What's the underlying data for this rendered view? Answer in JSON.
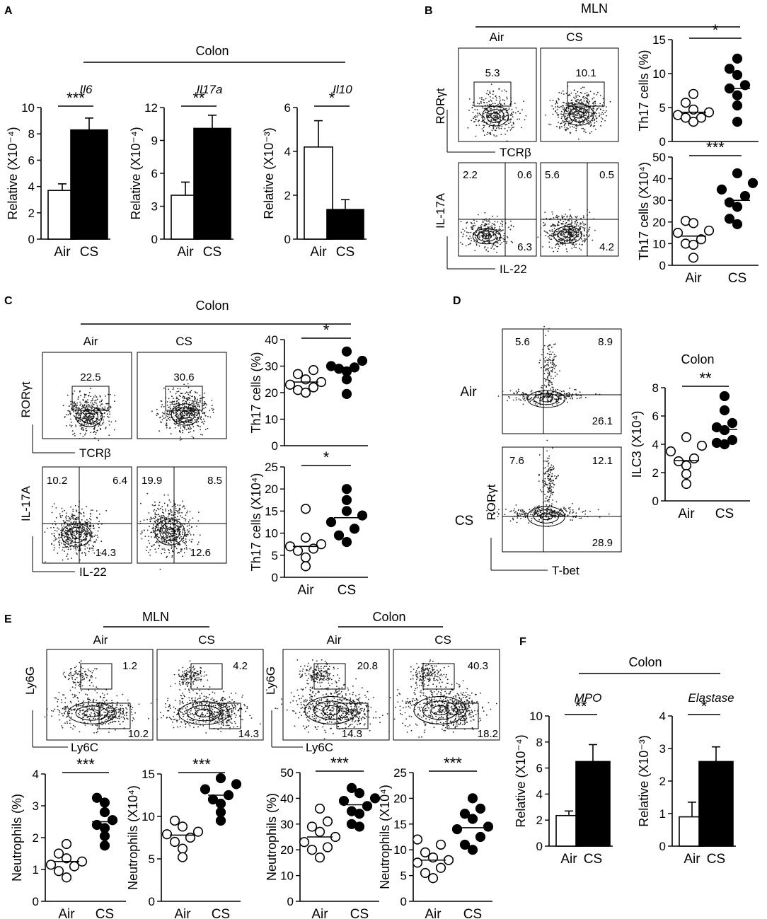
{
  "panel_labels": [
    "A",
    "B",
    "C",
    "D",
    "E",
    "F"
  ],
  "groups": [
    "Air",
    "CS"
  ],
  "chart_data": [
    {
      "id": "A1",
      "panel": "A",
      "type": "bar",
      "header": "Colon",
      "gene": "Il6",
      "ylabel": "Relative (X10⁻⁴)",
      "ylim": [
        0,
        10
      ],
      "yticks": [
        "0",
        "2",
        "4",
        "6",
        "8",
        "10"
      ],
      "categories": [
        "Air",
        "CS"
      ],
      "values": [
        3.7,
        8.3
      ],
      "errors": [
        0.5,
        0.9
      ],
      "sig": "***"
    },
    {
      "id": "A2",
      "panel": "A",
      "type": "bar",
      "gene": "Il17a",
      "ylabel": "Relative (X10⁻⁴)",
      "ylim": [
        0,
        12
      ],
      "yticks": [
        "0",
        "3",
        "6",
        "9",
        "12"
      ],
      "categories": [
        "Air",
        "CS"
      ],
      "values": [
        4.0,
        10.1
      ],
      "errors": [
        1.2,
        1.2
      ],
      "sig": "**"
    },
    {
      "id": "A3",
      "panel": "A",
      "type": "bar",
      "gene": "Il10",
      "ylabel": "Relative (X10⁻³)",
      "ylim": [
        0,
        6
      ],
      "yticks": [
        "0",
        "2",
        "4",
        "6"
      ],
      "categories": [
        "Air",
        "CS"
      ],
      "values": [
        4.2,
        1.35
      ],
      "errors": [
        1.2,
        0.45
      ],
      "sig": "*"
    },
    {
      "id": "B1",
      "panel": "B",
      "type": "scatter",
      "header": "MLN",
      "ylabel": "Th17 cells (%)",
      "ylim": [
        0,
        15
      ],
      "yticks": [
        "0",
        "5",
        "10",
        "15"
      ],
      "show_xticks": false,
      "categories": [
        "Air",
        "CS"
      ],
      "points": [
        [
          5.7,
          7.0,
          4.7,
          4.3,
          3.9,
          3.5,
          3.5,
          2.9
        ],
        [
          12.2,
          10.7,
          9.8,
          8.3,
          7.8,
          6.8,
          5.3,
          2.9
        ]
      ],
      "means": [
        4.3,
        7.8
      ],
      "sig": "*"
    },
    {
      "id": "B2",
      "panel": "B",
      "type": "scatter",
      "ylabel": "Th17 cells (X10⁴)",
      "ylim": [
        0,
        50
      ],
      "yticks": [
        "0",
        "10",
        "20",
        "30",
        "40",
        "50"
      ],
      "categories": [
        "Air",
        "CS"
      ],
      "points": [
        [
          20.5,
          19.5,
          16.0,
          15.0,
          12.0,
          10.0,
          9.5,
          3.5
        ],
        [
          42.5,
          38.0,
          35.0,
          32.0,
          29.0,
          27.0,
          21.5,
          19.0
        ]
      ],
      "means": [
        13.5,
        30.0
      ],
      "sig": "***"
    },
    {
      "id": "C1",
      "panel": "C",
      "type": "scatter",
      "header": "Colon",
      "ylabel": "Th17 cells (%)",
      "ylim": [
        0,
        40
      ],
      "yticks": [
        "0",
        "10",
        "20",
        "30",
        "40"
      ],
      "show_xticks": false,
      "categories": [
        "Air",
        "CS"
      ],
      "points": [
        [
          28.5,
          27.0,
          25.0,
          24.0,
          23.0,
          22.0,
          21.0,
          20.0
        ],
        [
          35.5,
          32.0,
          30.0,
          29.5,
          29.0,
          28.0,
          25.0,
          19.5
        ]
      ],
      "means": [
        24.0,
        29.5
      ],
      "sig": "*"
    },
    {
      "id": "C2",
      "panel": "C",
      "type": "scatter",
      "ylabel": "Th17 cells (X10⁴)",
      "ylim": [
        0,
        25
      ],
      "yticks": [
        "0",
        "5",
        "10",
        "15",
        "20",
        "25"
      ],
      "categories": [
        "Air",
        "CS"
      ],
      "points": [
        [
          15.5,
          9.0,
          7.5,
          7.0,
          6.5,
          6.0,
          4.5,
          2.5
        ],
        [
          20.0,
          17.5,
          15.0,
          14.0,
          12.5,
          11.0,
          9.5,
          8.0
        ]
      ],
      "means": [
        7.0,
        13.5
      ],
      "sig": "*"
    },
    {
      "id": "D1",
      "panel": "D",
      "type": "scatter",
      "header": "Colon",
      "ylabel": "ILC3 (X10⁴)",
      "ylim": [
        0,
        8
      ],
      "yticks": [
        "0",
        "2",
        "4",
        "6",
        "8"
      ],
      "categories": [
        "Air",
        "CS"
      ],
      "points": [
        [
          4.5,
          3.9,
          3.5,
          3.0,
          2.8,
          2.5,
          1.9,
          1.2
        ],
        [
          7.4,
          6.4,
          5.5,
          5.2,
          5.0,
          4.3,
          4.1,
          4.0
        ]
      ],
      "means": [
        2.85,
        5.05
      ],
      "sig": "**"
    },
    {
      "id": "E1",
      "panel": "E",
      "type": "scatter",
      "ylabel": "Neutrophils (%)",
      "ylim": [
        0,
        4
      ],
      "yticks": [
        "0",
        "1",
        "2",
        "3",
        "4"
      ],
      "categories": [
        "Air",
        "CS"
      ],
      "points": [
        [
          1.8,
          1.5,
          1.35,
          1.25,
          1.15,
          1.1,
          0.95,
          0.75
        ],
        [
          3.25,
          3.1,
          2.8,
          2.55,
          2.4,
          2.3,
          2.05,
          1.75
        ]
      ],
      "means": [
        1.25,
        2.5
      ],
      "sig": "***"
    },
    {
      "id": "E2",
      "panel": "E",
      "type": "scatter",
      "ylabel": "Neutrophils (X10⁴)",
      "ylim": [
        0,
        15
      ],
      "yticks": [
        "0",
        "5",
        "10",
        "15"
      ],
      "categories": [
        "Air",
        "CS"
      ],
      "points": [
        [
          9.5,
          8.8,
          8.2,
          7.9,
          7.5,
          7.0,
          6.2,
          5.2
        ],
        [
          14.5,
          13.8,
          13.2,
          12.5,
          12.0,
          11.5,
          10.5,
          9.5
        ]
      ],
      "means": [
        7.8,
        12.5
      ],
      "sig": "***"
    },
    {
      "id": "E3",
      "panel": "E",
      "type": "scatter",
      "header": "Colon",
      "ylabel": "Neutrophils (%)",
      "ylim": [
        0,
        50
      ],
      "yticks": [
        "0",
        "10",
        "20",
        "30",
        "40",
        "50"
      ],
      "categories": [
        "Air",
        "CS"
      ],
      "points": [
        [
          36,
          31,
          29,
          27,
          25,
          23,
          21,
          20,
          17
        ],
        [
          44,
          42,
          40,
          39,
          37,
          35,
          34,
          30,
          29
        ]
      ],
      "means": [
        25,
        37.5
      ],
      "sig": "***"
    },
    {
      "id": "E4",
      "panel": "E",
      "type": "scatter",
      "ylabel": "Neutrophils (X10⁴)",
      "ylim": [
        0,
        25
      ],
      "yticks": [
        "0",
        "5",
        "10",
        "15",
        "20",
        "25"
      ],
      "categories": [
        "Air",
        "CS"
      ],
      "points": [
        [
          12,
          11,
          9.5,
          8.5,
          8,
          7.5,
          6.5,
          5.5,
          4.5
        ],
        [
          20,
          18,
          17,
          16,
          14.5,
          14,
          12.5,
          11,
          10
        ]
      ],
      "means": [
        8,
        14.3
      ],
      "sig": "***"
    },
    {
      "id": "F1",
      "panel": "F",
      "type": "bar",
      "header": "Colon",
      "gene": "MPO",
      "ylabel": "Relative (X10⁻⁴)",
      "ylim": [
        0,
        10
      ],
      "yticks": [
        "0",
        "2",
        "4",
        "6",
        "8",
        "10"
      ],
      "categories": [
        "Air",
        "CS"
      ],
      "values": [
        2.35,
        6.5
      ],
      "errors": [
        0.35,
        1.3
      ],
      "sig": "**"
    },
    {
      "id": "F2",
      "panel": "F",
      "type": "bar",
      "gene": "Elastase",
      "ylabel": "Relative (X10⁻³)",
      "ylim": [
        0,
        4
      ],
      "yticks": [
        "0",
        "1",
        "2",
        "3",
        "4"
      ],
      "categories": [
        "Air",
        "CS"
      ],
      "values": [
        0.9,
        2.6
      ],
      "errors": [
        0.45,
        0.45
      ],
      "sig": "*"
    }
  ],
  "flow_plots": {
    "B_top": {
      "y_axis": "RORγt",
      "x_axis": "TCRβ",
      "air_value": "5.3",
      "cs_value": "10.1"
    },
    "B_bottom": {
      "y_axis": "IL-17A",
      "x_axis": "IL-22",
      "air_quadrants": [
        "2.2",
        "0.6",
        "6.3"
      ],
      "cs_quadrants": [
        "5.6",
        "0.5",
        "4.2"
      ]
    },
    "C_top": {
      "y_axis": "RORγt",
      "x_axis": "TCRβ",
      "air_value": "22.5",
      "cs_value": "30.6"
    },
    "C_bottom": {
      "y_axis": "IL-17A",
      "x_axis": "IL-22",
      "air_quadrants": [
        "10.2",
        "6.4",
        "14.3"
      ],
      "cs_quadrants": [
        "19.9",
        "8.5",
        "12.6"
      ]
    },
    "D": {
      "y_axis": "RORγt",
      "x_axis": "T-bet",
      "air_quadrants": [
        "5.6",
        "8.9",
        "26.1"
      ],
      "cs_quadrants": [
        "7.6",
        "12.1",
        "28.9"
      ]
    },
    "E": {
      "y_axis": "Ly6G",
      "x_axis": "Ly6C",
      "mln_header": "MLN",
      "colon_header": "Colon",
      "mln_air": [
        "1.2",
        "10.2"
      ],
      "mln_cs": [
        "4.2",
        "14.3"
      ],
      "colon_air": [
        "20.8",
        "14.3"
      ],
      "colon_cs": [
        "40.3",
        "18.2"
      ]
    }
  }
}
